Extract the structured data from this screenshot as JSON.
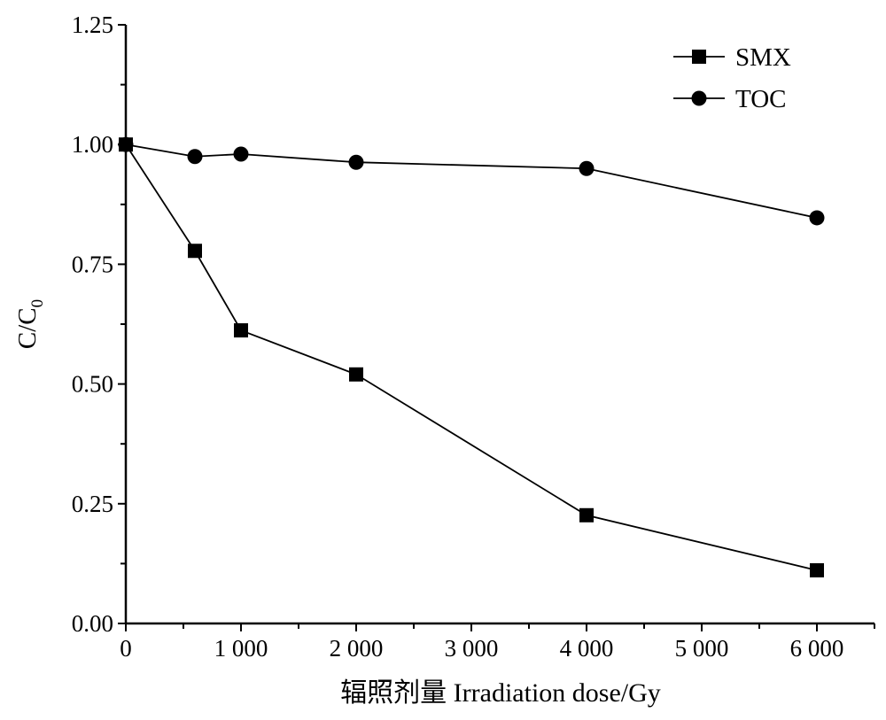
{
  "chart_data": {
    "type": "line",
    "title": "",
    "xlabel": "辐照剂量  Irradiation dose/Gy",
    "ylabel": "C/C",
    "ylabel_subscript": "0",
    "xlim": [
      0,
      6500
    ],
    "ylim": [
      0,
      1.25
    ],
    "grid": false,
    "legend_position": "top-right",
    "x_ticks": [
      0,
      1000,
      2000,
      3000,
      4000,
      5000,
      6000
    ],
    "x_tick_labels": [
      "0",
      "1 000",
      "2 000",
      "3 000",
      "4 000",
      "5 000",
      "6 000"
    ],
    "y_ticks": [
      0,
      0.25,
      0.5,
      0.75,
      1.0,
      1.25
    ],
    "y_tick_labels": [
      "0.00",
      "0.25",
      "0.50",
      "0.75",
      "1.00",
      "1.25"
    ],
    "series": [
      {
        "name": "SMX",
        "marker": "square",
        "x": [
          0,
          600,
          1000,
          2000,
          4000,
          6000
        ],
        "values": [
          1.0,
          0.778,
          0.612,
          0.52,
          0.226,
          0.111
        ]
      },
      {
        "name": "TOC",
        "marker": "circle",
        "x": [
          0,
          600,
          1000,
          2000,
          4000,
          6000
        ],
        "values": [
          1.0,
          0.975,
          0.98,
          0.963,
          0.95,
          0.847
        ]
      }
    ]
  }
}
